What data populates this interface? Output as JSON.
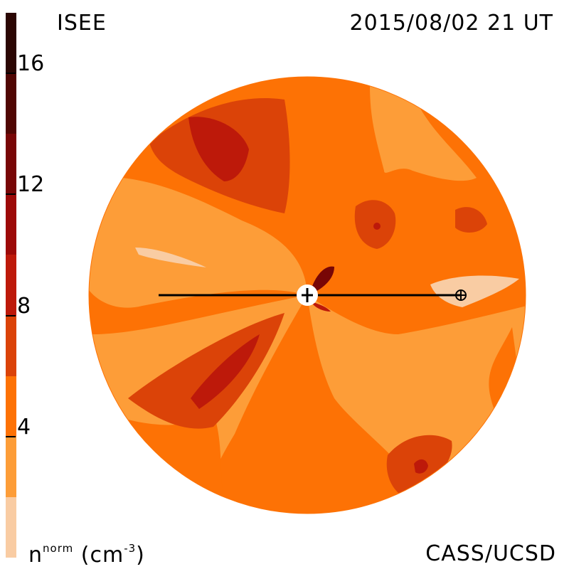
{
  "header": {
    "title": "ISEE",
    "timestamp": "2015/08/02 21 UT"
  },
  "footer": {
    "credit": "CASS/UCSD",
    "unit_main": "n",
    "unit_super": "norm",
    "unit_paren_open": "(cm",
    "unit_exp": "-3",
    "unit_paren_close": ")"
  },
  "colorbar": {
    "ticks": [
      "16",
      "12",
      "8",
      "4"
    ],
    "tick_values": [
      16,
      12,
      8,
      4
    ],
    "range": [
      0,
      18
    ],
    "bands": [
      {
        "from": 0,
        "to": 2,
        "color": "#f9cca3"
      },
      {
        "from": 2,
        "to": 4,
        "color": "#fd9d38"
      },
      {
        "from": 4,
        "to": 6,
        "color": "#fd7205"
      },
      {
        "from": 6,
        "to": 8,
        "color": "#db4308"
      },
      {
        "from": 8,
        "to": 10,
        "color": "#bd190a"
      },
      {
        "from": 10,
        "to": 12,
        "color": "#9d0a08"
      },
      {
        "from": 12,
        "to": 14,
        "color": "#780606"
      },
      {
        "from": 14,
        "to": 16,
        "color": "#500603"
      },
      {
        "from": 16,
        "to": 18,
        "color": "#2b0603"
      }
    ]
  },
  "map": {
    "background_level_color": "#fd7205",
    "markers": [
      "sun-marker",
      "earth-marker"
    ]
  }
}
